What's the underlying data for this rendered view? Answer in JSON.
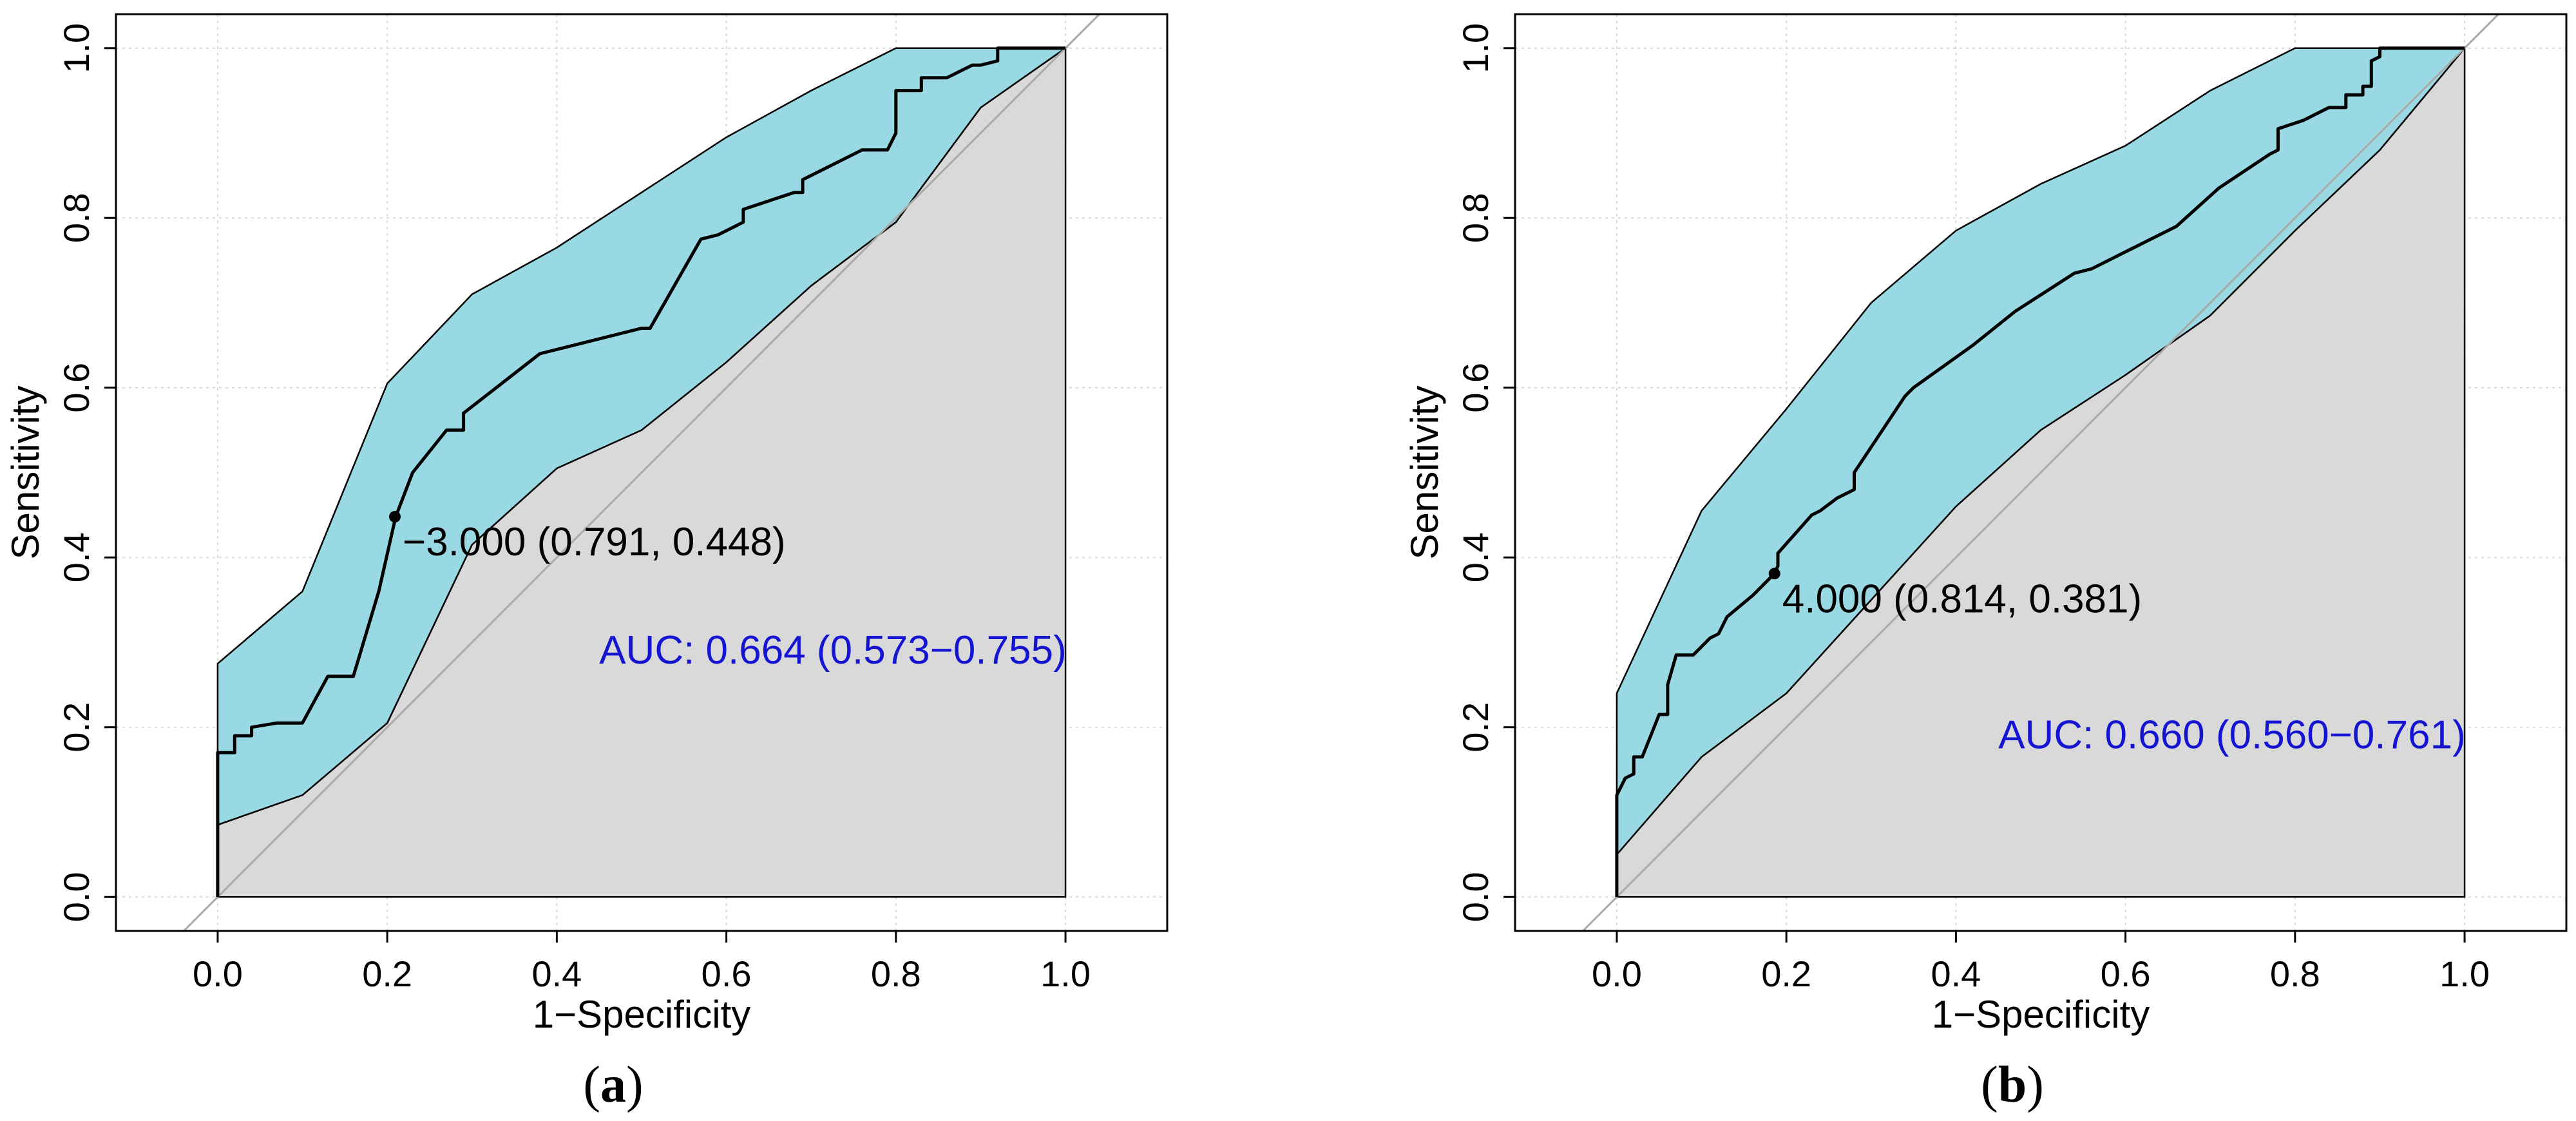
{
  "colors": {
    "ci_fill": "#99d9e3",
    "below_fill": "#d9d9d9",
    "grid": "#d8d8d8",
    "auc_text": "#1414d2",
    "curve": "#000000",
    "diagonal": "#aaaaaa"
  },
  "chart_data": [
    {
      "type": "line",
      "panel_label": "a",
      "xlabel": "1−Specificity",
      "ylabel": "Sensitivity",
      "xlim": [
        -0.12,
        1.12
      ],
      "ylim": [
        -0.04,
        1.04
      ],
      "xticks": [
        0.0,
        0.2,
        0.4,
        0.6,
        0.8,
        1.0
      ],
      "yticks": [
        0.0,
        0.2,
        0.4,
        0.6,
        0.8,
        1.0
      ],
      "xtick_labels": [
        "0.0",
        "0.2",
        "0.4",
        "0.6",
        "0.8",
        "1.0"
      ],
      "ytick_labels": [
        "0.0",
        "0.2",
        "0.4",
        "0.6",
        "0.8",
        "1.0"
      ],
      "grid": true,
      "roc": {
        "x": [
          0,
          0,
          0.02,
          0.02,
          0.04,
          0.04,
          0.07,
          0.1,
          0.13,
          0.16,
          0.19,
          0.21,
          0.23,
          0.27,
          0.29,
          0.29,
          0.38,
          0.5,
          0.51,
          0.57,
          0.59,
          0.62,
          0.62,
          0.68,
          0.69,
          0.69,
          0.76,
          0.79,
          0.8,
          0.8,
          0.83,
          0.83,
          0.86,
          0.89,
          0.9,
          0.92,
          0.92,
          0.95,
          1.0
        ],
        "y": [
          0,
          0.17,
          0.17,
          0.19,
          0.19,
          0.2,
          0.205,
          0.205,
          0.26,
          0.26,
          0.36,
          0.448,
          0.5,
          0.55,
          0.55,
          0.57,
          0.64,
          0.67,
          0.67,
          0.775,
          0.78,
          0.795,
          0.81,
          0.83,
          0.83,
          0.845,
          0.88,
          0.88,
          0.9,
          0.95,
          0.95,
          0.965,
          0.965,
          0.98,
          0.98,
          0.985,
          1.0,
          1.0,
          1.0
        ]
      },
      "ci_upper": {
        "x": [
          0,
          0.1,
          0.2,
          0.3,
          0.4,
          0.5,
          0.6,
          0.7,
          0.8,
          0.9,
          1.0
        ],
        "y": [
          0.275,
          0.36,
          0.605,
          0.71,
          0.765,
          0.83,
          0.895,
          0.95,
          1.0,
          1.0,
          1.0
        ]
      },
      "ci_lower": {
        "x": [
          0,
          0.1,
          0.2,
          0.3,
          0.4,
          0.5,
          0.6,
          0.7,
          0.8,
          0.9,
          1.0
        ],
        "y": [
          0.085,
          0.12,
          0.205,
          0.415,
          0.505,
          0.55,
          0.63,
          0.72,
          0.795,
          0.93,
          1.0
        ]
      },
      "best_point": {
        "x": 0.209,
        "y": 0.448,
        "label": "−3.000 (0.791, 0.448)"
      },
      "auc_text": "AUC: 0.664 (0.573−0.755)",
      "auc_pos": {
        "x": 0.45,
        "y": 0.275
      }
    },
    {
      "type": "line",
      "panel_label": "b",
      "xlabel": "1−Specificity",
      "ylabel": "Sensitivity",
      "xlim": [
        -0.12,
        1.12
      ],
      "ylim": [
        -0.04,
        1.04
      ],
      "xticks": [
        0.0,
        0.2,
        0.4,
        0.6,
        0.8,
        1.0
      ],
      "yticks": [
        0.0,
        0.2,
        0.4,
        0.6,
        0.8,
        1.0
      ],
      "xtick_labels": [
        "0.0",
        "0.2",
        "0.4",
        "0.6",
        "0.8",
        "1.0"
      ],
      "ytick_labels": [
        "0.0",
        "0.2",
        "0.4",
        "0.6",
        "0.8",
        "1.0"
      ],
      "grid": true,
      "roc": {
        "x": [
          0,
          0,
          0.01,
          0.01,
          0.02,
          0.02,
          0.03,
          0.04,
          0.05,
          0.06,
          0.06,
          0.07,
          0.09,
          0.11,
          0.12,
          0.13,
          0.16,
          0.186,
          0.19,
          0.19,
          0.23,
          0.24,
          0.26,
          0.28,
          0.28,
          0.34,
          0.35,
          0.42,
          0.47,
          0.54,
          0.56,
          0.6,
          0.62,
          0.66,
          0.71,
          0.77,
          0.78,
          0.78,
          0.81,
          0.84,
          0.86,
          0.86,
          0.88,
          0.88,
          0.89,
          0.89,
          0.9,
          0.9,
          1.0
        ],
        "y": [
          0,
          0.12,
          0.14,
          0.14,
          0.145,
          0.165,
          0.165,
          0.19,
          0.215,
          0.215,
          0.25,
          0.285,
          0.285,
          0.305,
          0.31,
          0.33,
          0.355,
          0.381,
          0.39,
          0.405,
          0.45,
          0.455,
          0.47,
          0.48,
          0.5,
          0.59,
          0.6,
          0.65,
          0.69,
          0.735,
          0.74,
          0.76,
          0.77,
          0.79,
          0.835,
          0.875,
          0.88,
          0.905,
          0.915,
          0.93,
          0.93,
          0.945,
          0.945,
          0.955,
          0.955,
          0.985,
          0.99,
          1.0,
          1.0
        ]
      },
      "ci_upper": {
        "x": [
          0,
          0.1,
          0.2,
          0.3,
          0.4,
          0.5,
          0.6,
          0.7,
          0.8,
          0.9,
          1.0
        ],
        "y": [
          0.24,
          0.455,
          0.575,
          0.7,
          0.785,
          0.84,
          0.885,
          0.95,
          1.0,
          1.0,
          1.0
        ]
      },
      "ci_lower": {
        "x": [
          0,
          0.1,
          0.2,
          0.3,
          0.4,
          0.5,
          0.6,
          0.7,
          0.8,
          0.9,
          1.0
        ],
        "y": [
          0.05,
          0.165,
          0.24,
          0.35,
          0.46,
          0.55,
          0.615,
          0.685,
          0.785,
          0.88,
          1.0
        ]
      },
      "best_point": {
        "x": 0.186,
        "y": 0.381,
        "label": "4.000 (0.814, 0.381)"
      },
      "auc_text": "AUC: 0.660 (0.560−0.761)",
      "auc_pos": {
        "x": 0.45,
        "y": 0.175
      }
    }
  ]
}
